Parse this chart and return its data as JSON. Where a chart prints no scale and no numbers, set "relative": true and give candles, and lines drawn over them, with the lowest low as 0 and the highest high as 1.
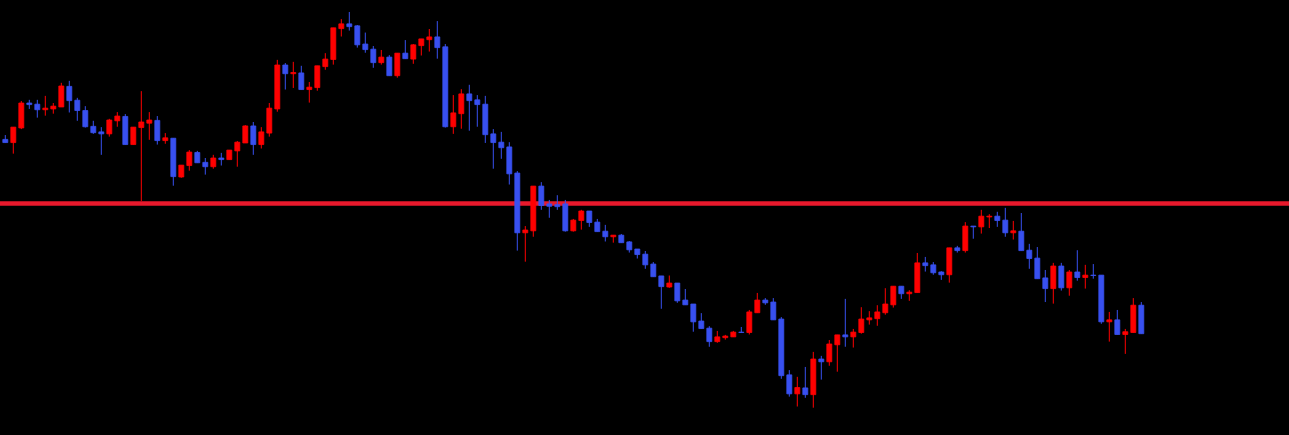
{
  "chart_data": {
    "type": "candlestick",
    "relative": true,
    "categories": [
      null,
      null,
      null,
      null,
      null,
      null,
      null,
      null,
      null,
      null,
      null,
      null,
      null,
      null,
      null,
      null,
      null,
      null,
      null,
      null,
      null,
      null,
      null,
      null,
      null,
      null,
      null,
      null,
      null,
      null,
      null,
      null,
      null,
      null,
      null,
      null,
      null,
      null,
      null,
      null,
      null,
      null,
      null,
      null,
      null,
      null,
      null,
      null,
      null,
      null,
      null,
      null,
      null,
      null,
      null,
      null,
      null,
      null,
      null,
      null,
      null,
      null,
      null,
      null,
      null,
      null,
      null,
      null,
      null,
      null,
      null,
      null,
      null,
      null,
      null,
      null,
      null,
      null,
      null,
      null,
      null,
      null,
      null,
      null,
      null,
      null,
      null,
      null,
      null,
      null,
      null,
      null,
      null,
      null,
      null,
      null,
      null,
      null,
      null,
      null,
      null,
      null,
      null,
      null,
      null,
      null,
      null,
      null,
      null,
      null,
      null,
      null,
      null,
      null,
      null,
      null,
      null,
      null,
      null,
      null,
      null,
      null,
      null,
      null,
      null,
      null,
      null,
      null,
      null,
      null,
      null,
      null,
      null,
      null,
      null,
      null,
      null,
      null,
      null,
      null,
      null,
      null,
      null
    ],
    "ohlc": [
      [
        0.678,
        0.689,
        0.67,
        0.67
      ],
      [
        0.67,
        0.709,
        0.642,
        0.709
      ],
      [
        0.707,
        0.775,
        0.704,
        0.77
      ],
      [
        0.77,
        0.778,
        0.755,
        0.766
      ],
      [
        0.767,
        0.778,
        0.733,
        0.753
      ],
      [
        0.753,
        0.788,
        0.738,
        0.757
      ],
      [
        0.755,
        0.77,
        0.743,
        0.762
      ],
      [
        0.76,
        0.821,
        0.76,
        0.813
      ],
      [
        0.812,
        0.826,
        0.746,
        0.776
      ],
      [
        0.777,
        0.783,
        0.725,
        0.751
      ],
      [
        0.751,
        0.762,
        0.708,
        0.71
      ],
      [
        0.711,
        0.725,
        0.692,
        0.695
      ],
      [
        0.697,
        0.709,
        0.639,
        0.692
      ],
      [
        0.692,
        0.73,
        0.685,
        0.727
      ],
      [
        0.725,
        0.747,
        0.71,
        0.737
      ],
      [
        0.736,
        0.742,
        0.665,
        0.665
      ],
      [
        0.665,
        0.709,
        0.665,
        0.709
      ],
      [
        0.708,
        0.8,
        0.522,
        0.722
      ],
      [
        0.719,
        0.747,
        0.677,
        0.727
      ],
      [
        0.726,
        0.737,
        0.665,
        0.675
      ],
      [
        0.675,
        0.694,
        0.667,
        0.682
      ],
      [
        0.681,
        0.681,
        0.561,
        0.584
      ],
      [
        0.583,
        0.613,
        0.581,
        0.613
      ],
      [
        0.612,
        0.651,
        0.599,
        0.646
      ],
      [
        0.645,
        0.649,
        0.619,
        0.619
      ],
      [
        0.62,
        0.631,
        0.589,
        0.609
      ],
      [
        0.609,
        0.639,
        0.604,
        0.631
      ],
      [
        0.631,
        0.644,
        0.612,
        0.627
      ],
      [
        0.627,
        0.651,
        0.627,
        0.651
      ],
      [
        0.649,
        0.674,
        0.609,
        0.671
      ],
      [
        0.669,
        0.714,
        0.669,
        0.712
      ],
      [
        0.712,
        0.722,
        0.639,
        0.665
      ],
      [
        0.665,
        0.709,
        0.655,
        0.697
      ],
      [
        0.694,
        0.77,
        0.685,
        0.757
      ],
      [
        0.755,
        0.879,
        0.748,
        0.866
      ],
      [
        0.866,
        0.871,
        0.804,
        0.844
      ],
      [
        0.844,
        0.874,
        0.808,
        0.847
      ],
      [
        0.846,
        0.864,
        0.804,
        0.804
      ],
      [
        0.804,
        0.823,
        0.771,
        0.81
      ],
      [
        0.809,
        0.864,
        0.801,
        0.864
      ],
      [
        0.862,
        0.896,
        0.854,
        0.881
      ],
      [
        0.88,
        0.96,
        0.867,
        0.96
      ],
      [
        0.958,
        0.982,
        0.938,
        0.97
      ],
      [
        0.97,
        1.0,
        0.953,
        0.963
      ],
      [
        0.965,
        0.967,
        0.91,
        0.917
      ],
      [
        0.919,
        0.948,
        0.897,
        0.905
      ],
      [
        0.906,
        0.914,
        0.859,
        0.872
      ],
      [
        0.872,
        0.904,
        0.867,
        0.886
      ],
      [
        0.886,
        0.891,
        0.839,
        0.839
      ],
      [
        0.839,
        0.896,
        0.834,
        0.896
      ],
      [
        0.896,
        0.929,
        0.882,
        0.882
      ],
      [
        0.881,
        0.919,
        0.869,
        0.917
      ],
      [
        0.915,
        0.932,
        0.89,
        0.932
      ],
      [
        0.93,
        0.957,
        0.9,
        0.937
      ],
      [
        0.937,
        0.977,
        0.882,
        0.91
      ],
      [
        0.912,
        0.919,
        0.708,
        0.71
      ],
      [
        0.71,
        0.79,
        0.692,
        0.745
      ],
      [
        0.743,
        0.805,
        0.705,
        0.793
      ],
      [
        0.793,
        0.816,
        0.7,
        0.776
      ],
      [
        0.778,
        0.79,
        0.71,
        0.766
      ],
      [
        0.767,
        0.788,
        0.669,
        0.69
      ],
      [
        0.692,
        0.704,
        0.604,
        0.67
      ],
      [
        0.671,
        0.697,
        0.629,
        0.657
      ],
      [
        0.659,
        0.671,
        0.564,
        0.591
      ],
      [
        0.593,
        0.598,
        0.397,
        0.442
      ],
      [
        0.442,
        0.459,
        0.369,
        0.449
      ],
      [
        0.447,
        0.56,
        0.432,
        0.56
      ],
      [
        0.56,
        0.57,
        0.5,
        0.511
      ],
      [
        0.515,
        0.525,
        0.48,
        0.509
      ],
      [
        0.513,
        0.537,
        0.5,
        0.508
      ],
      [
        0.515,
        0.525,
        0.445,
        0.447
      ],
      [
        0.447,
        0.477,
        0.445,
        0.474
      ],
      [
        0.473,
        0.5,
        0.45,
        0.497
      ],
      [
        0.497,
        0.497,
        0.457,
        0.468
      ],
      [
        0.469,
        0.477,
        0.445,
        0.445
      ],
      [
        0.446,
        0.462,
        0.42,
        0.432
      ],
      [
        0.432,
        0.436,
        0.417,
        0.436
      ],
      [
        0.436,
        0.439,
        0.417,
        0.417
      ],
      [
        0.419,
        0.421,
        0.392,
        0.399
      ],
      [
        0.401,
        0.401,
        0.377,
        0.387
      ],
      [
        0.388,
        0.396,
        0.351,
        0.361
      ],
      [
        0.363,
        0.368,
        0.331,
        0.331
      ],
      [
        0.333,
        0.333,
        0.25,
        0.306
      ],
      [
        0.305,
        0.334,
        0.303,
        0.315
      ],
      [
        0.315,
        0.315,
        0.265,
        0.27
      ],
      [
        0.272,
        0.3,
        0.26,
        0.26
      ],
      [
        0.262,
        0.262,
        0.192,
        0.217
      ],
      [
        0.219,
        0.239,
        0.2,
        0.2
      ],
      [
        0.201,
        0.206,
        0.154,
        0.167
      ],
      [
        0.167,
        0.194,
        0.164,
        0.179
      ],
      [
        0.177,
        0.184,
        0.172,
        0.181
      ],
      [
        0.179,
        0.194,
        0.179,
        0.191
      ],
      [
        0.191,
        0.204,
        0.19,
        0.19
      ],
      [
        0.19,
        0.247,
        0.185,
        0.242
      ],
      [
        0.24,
        0.29,
        0.24,
        0.272
      ],
      [
        0.272,
        0.277,
        0.26,
        0.265
      ],
      [
        0.267,
        0.277,
        0.222,
        0.222
      ],
      [
        0.224,
        0.229,
        0.073,
        0.081
      ],
      [
        0.083,
        0.095,
        0.028,
        0.035
      ],
      [
        0.035,
        0.078,
        0.003,
        0.051
      ],
      [
        0.05,
        0.103,
        0.025,
        0.033
      ],
      [
        0.033,
        0.141,
        0.0,
        0.123
      ],
      [
        0.123,
        0.131,
        0.071,
        0.116
      ],
      [
        0.116,
        0.171,
        0.106,
        0.161
      ],
      [
        0.159,
        0.184,
        0.091,
        0.184
      ],
      [
        0.184,
        0.275,
        0.154,
        0.179
      ],
      [
        0.179,
        0.199,
        0.152,
        0.191
      ],
      [
        0.19,
        0.254,
        0.187,
        0.224
      ],
      [
        0.222,
        0.244,
        0.21,
        0.227
      ],
      [
        0.225,
        0.259,
        0.207,
        0.242
      ],
      [
        0.24,
        0.302,
        0.235,
        0.262
      ],
      [
        0.26,
        0.307,
        0.253,
        0.307
      ],
      [
        0.307,
        0.307,
        0.275,
        0.288
      ],
      [
        0.288,
        0.297,
        0.27,
        0.292
      ],
      [
        0.291,
        0.391,
        0.291,
        0.366
      ],
      [
        0.366,
        0.381,
        0.344,
        0.359
      ],
      [
        0.361,
        0.368,
        0.336,
        0.341
      ],
      [
        0.343,
        0.345,
        0.323,
        0.336
      ],
      [
        0.336,
        0.404,
        0.316,
        0.404
      ],
      [
        0.404,
        0.409,
        0.392,
        0.397
      ],
      [
        0.397,
        0.469,
        0.392,
        0.459
      ],
      [
        0.459,
        0.459,
        0.427,
        0.457
      ],
      [
        0.457,
        0.5,
        0.44,
        0.484
      ],
      [
        0.482,
        0.489,
        0.454,
        0.484
      ],
      [
        0.484,
        0.495,
        0.457,
        0.473
      ],
      [
        0.474,
        0.505,
        0.432,
        0.442
      ],
      [
        0.442,
        0.472,
        0.425,
        0.447
      ],
      [
        0.446,
        0.492,
        0.397,
        0.397
      ],
      [
        0.398,
        0.414,
        0.351,
        0.377
      ],
      [
        0.378,
        0.406,
        0.326,
        0.326
      ],
      [
        0.328,
        0.348,
        0.267,
        0.301
      ],
      [
        0.301,
        0.366,
        0.263,
        0.358
      ],
      [
        0.358,
        0.366,
        0.296,
        0.303
      ],
      [
        0.303,
        0.348,
        0.283,
        0.343
      ],
      [
        0.343,
        0.398,
        0.321,
        0.329
      ],
      [
        0.329,
        0.361,
        0.301,
        0.335
      ],
      [
        0.335,
        0.363,
        0.326,
        0.334
      ],
      [
        0.335,
        0.335,
        0.212,
        0.217
      ],
      [
        0.217,
        0.242,
        0.167,
        0.222
      ],
      [
        0.222,
        0.247,
        0.185,
        0.185
      ],
      [
        0.185,
        0.199,
        0.136,
        0.192
      ],
      [
        0.19,
        0.277,
        0.19,
        0.259
      ],
      [
        0.259,
        0.267,
        0.187,
        0.187
      ]
    ],
    "colors": [
      "#3850f0",
      "#ff0000",
      "#ff0000",
      "#3850f0",
      "#3850f0",
      "#ff0000",
      "#ff0000",
      "#ff0000",
      "#3850f0",
      "#3850f0",
      "#3850f0",
      "#3850f0",
      "#3850f0",
      "#ff0000",
      "#ff0000",
      "#3850f0",
      "#ff0000",
      "#ff0000",
      "#ff0000",
      "#3850f0",
      "#ff0000",
      "#3850f0",
      "#ff0000",
      "#ff0000",
      "#3850f0",
      "#3850f0",
      "#ff0000",
      "#3850f0",
      "#ff0000",
      "#ff0000",
      "#ff0000",
      "#3850f0",
      "#ff0000",
      "#ff0000",
      "#ff0000",
      "#3850f0",
      "#ff0000",
      "#3850f0",
      "#ff0000",
      "#ff0000",
      "#ff0000",
      "#ff0000",
      "#ff0000",
      "#3850f0",
      "#3850f0",
      "#3850f0",
      "#3850f0",
      "#ff0000",
      "#3850f0",
      "#ff0000",
      "#3850f0",
      "#ff0000",
      "#ff0000",
      "#ff0000",
      "#3850f0",
      "#3850f0",
      "#ff0000",
      "#ff0000",
      "#3850f0",
      "#3850f0",
      "#3850f0",
      "#3850f0",
      "#3850f0",
      "#3850f0",
      "#3850f0",
      "#ff0000",
      "#ff0000",
      "#3850f0",
      "#3850f0",
      "#3850f0",
      "#3850f0",
      "#ff0000",
      "#ff0000",
      "#3850f0",
      "#3850f0",
      "#3850f0",
      "#ff0000",
      "#3850f0",
      "#3850f0",
      "#3850f0",
      "#3850f0",
      "#3850f0",
      "#3850f0",
      "#ff0000",
      "#3850f0",
      "#3850f0",
      "#3850f0",
      "#3850f0",
      "#3850f0",
      "#ff0000",
      "#ff0000",
      "#ff0000",
      "#3850f0",
      "#ff0000",
      "#ff0000",
      "#3850f0",
      "#3850f0",
      "#3850f0",
      "#3850f0",
      "#ff0000",
      "#3850f0",
      "#ff0000",
      "#3850f0",
      "#ff0000",
      "#ff0000",
      "#3850f0",
      "#ff0000",
      "#ff0000",
      "#ff0000",
      "#ff0000",
      "#ff0000",
      "#ff0000",
      "#3850f0",
      "#ff0000",
      "#ff0000",
      "#3850f0",
      "#3850f0",
      "#3850f0",
      "#ff0000",
      "#3850f0",
      "#ff0000",
      "#3850f0",
      "#ff0000",
      "#ff0000",
      "#3850f0",
      "#3850f0",
      "#ff0000",
      "#3850f0",
      "#3850f0",
      "#3850f0",
      "#3850f0",
      "#ff0000",
      "#3850f0",
      "#ff0000",
      "#3850f0",
      "#ff0000",
      "#3850f0",
      "#3850f0",
      "#ff0000",
      "#3850f0",
      "#ff0000",
      "#ff0000",
      "#3850f0"
    ],
    "ref_lines": [
      {
        "axis": "y",
        "value": 0.516,
        "color": "#e8192c"
      }
    ]
  }
}
